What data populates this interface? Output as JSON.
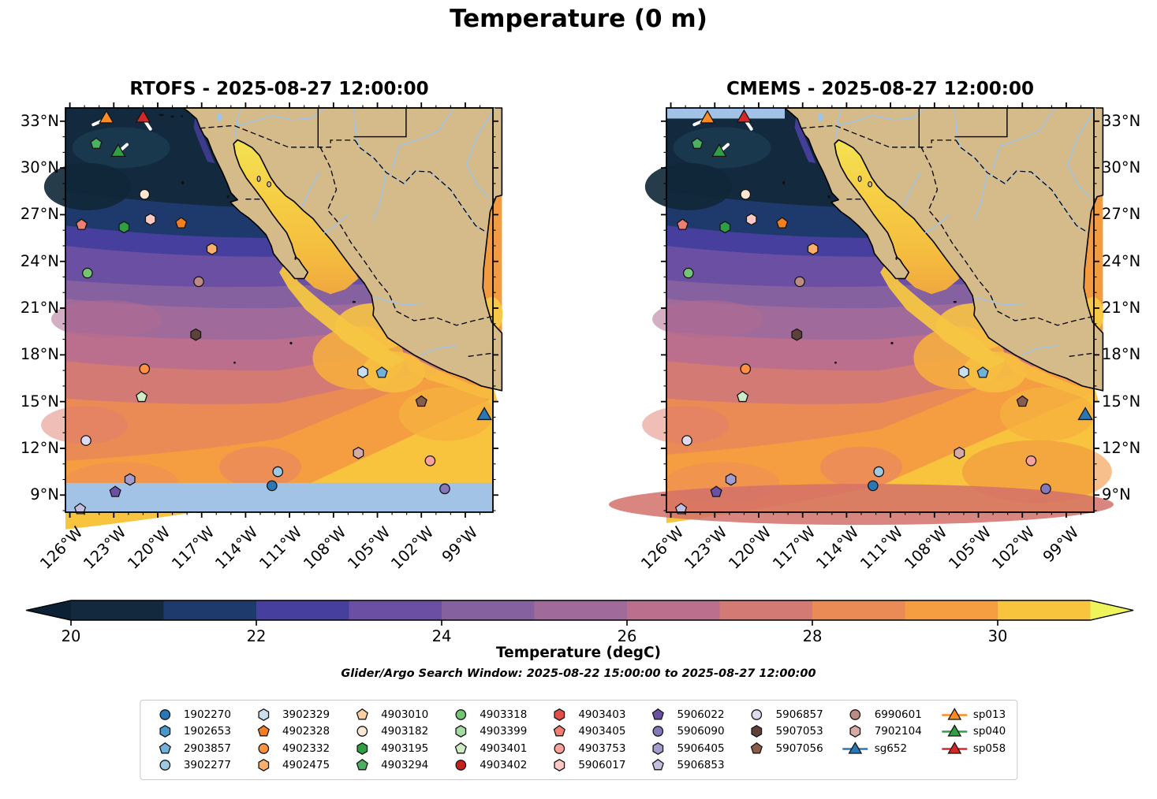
{
  "title": "Temperature (0 m)",
  "panels": [
    {
      "title": "RTOFS - 2025-08-27 12:00:00",
      "model": "RTOFS",
      "nodata_band": "bottom"
    },
    {
      "title": "CMEMS - 2025-08-27 12:00:00",
      "model": "CMEMS",
      "nodata_band": "top"
    }
  ],
  "axis": {
    "lat_labels": [
      "33°N",
      "30°N",
      "27°N",
      "24°N",
      "21°N",
      "18°N",
      "15°N",
      "12°N",
      "9°N"
    ],
    "lat_values": [
      33,
      30,
      27,
      24,
      21,
      18,
      15,
      12,
      9
    ],
    "lon_labels": [
      "126°W",
      "123°W",
      "120°W",
      "117°W",
      "114°W",
      "111°W",
      "108°W",
      "105°W",
      "102°W",
      "99°W"
    ],
    "lon_values": [
      -126,
      -123,
      -120,
      -117,
      -114,
      -111,
      -108,
      -105,
      -102,
      -99
    ]
  },
  "colorbar": {
    "label": "Temperature (degC)",
    "tick_labels": [
      "20",
      "22",
      "24",
      "26",
      "28",
      "30"
    ],
    "tick_values": [
      20,
      22,
      24,
      26,
      28,
      30
    ],
    "range": [
      20,
      31
    ],
    "extend": "both",
    "segment_colors": [
      "#13293e",
      "#1e3a6d",
      "#473f9e",
      "#6a4fa3",
      "#85619f",
      "#a06b9b",
      "#bb6f8c",
      "#d47a74",
      "#ea8b55",
      "#f59d41",
      "#f8c43e"
    ],
    "under_arrow_color": "#0c2133",
    "over_arrow_color": "#edf45c"
  },
  "annotation": "Glider/Argo Search Window: 2025-08-22 15:00:00 to 2025-08-27 12:00:00",
  "legend_entries": [
    {
      "id": "1902270",
      "shape": "circle",
      "color": "#2878b8",
      "lon": -112.2,
      "lat": 9.6
    },
    {
      "id": "1902653",
      "shape": "hexagon",
      "color": "#4a97c9"
    },
    {
      "id": "2903857",
      "shape": "pentagon",
      "color": "#73b2d8",
      "lon": -104.7,
      "lat": 16.85
    },
    {
      "id": "3902277",
      "shape": "circle",
      "color": "#9ecae1",
      "lon": -111.8,
      "lat": 10.5
    },
    {
      "id": "3902329",
      "shape": "hexagon",
      "color": "#c9dff0",
      "lon": -106.0,
      "lat": 16.9
    },
    {
      "id": "4902328",
      "shape": "pentagon",
      "color": "#f57f20",
      "lon": -118.4,
      "lat": 26.45
    },
    {
      "id": "4902332",
      "shape": "circle",
      "color": "#fd9140",
      "lon": -120.9,
      "lat": 17.1
    },
    {
      "id": "4902475",
      "shape": "hexagon",
      "color": "#fdae6b",
      "lon": -116.3,
      "lat": 24.8
    },
    {
      "id": "4903010",
      "shape": "pentagon",
      "color": "#fdd0a2"
    },
    {
      "id": "4903182",
      "shape": "circle",
      "color": "#fee8d3",
      "lon": -120.9,
      "lat": 28.3
    },
    {
      "id": "4903195",
      "shape": "hexagon",
      "color": "#2f9e45",
      "lon": -122.3,
      "lat": 26.2
    },
    {
      "id": "4903294",
      "shape": "pentagon",
      "color": "#4bb062",
      "lon": -124.2,
      "lat": 31.55
    },
    {
      "id": "4903318",
      "shape": "circle",
      "color": "#74c476",
      "lon": -124.8,
      "lat": 23.25
    },
    {
      "id": "4903399",
      "shape": "hexagon",
      "color": "#a5dba2"
    },
    {
      "id": "4903401",
      "shape": "pentagon",
      "color": "#cdebc7",
      "lon": -121.1,
      "lat": 15.3
    },
    {
      "id": "4903402",
      "shape": "circle",
      "color": "#cc1f1f"
    },
    {
      "id": "4903403",
      "shape": "hexagon",
      "color": "#e04f4a"
    },
    {
      "id": "4903405",
      "shape": "pentagon",
      "color": "#ef7f72",
      "lon": -125.2,
      "lat": 26.35
    },
    {
      "id": "4903753",
      "shape": "circle",
      "color": "#fba29a",
      "lon": -101.4,
      "lat": 11.2
    },
    {
      "id": "5906017",
      "shape": "hexagon",
      "color": "#fcc9c4",
      "lon": -120.5,
      "lat": 26.7
    },
    {
      "id": "5906022",
      "shape": "pentagon",
      "color": "#6a51a3",
      "lon": -122.9,
      "lat": 9.2
    },
    {
      "id": "5906090",
      "shape": "circle",
      "color": "#8677bd",
      "lon": -100.4,
      "lat": 9.4
    },
    {
      "id": "5906405",
      "shape": "hexagon",
      "color": "#a59cce",
      "lon": -121.9,
      "lat": 10.0
    },
    {
      "id": "5906853",
      "shape": "pentagon",
      "color": "#c4bedf",
      "lon": -125.3,
      "lat": 8.1
    },
    {
      "id": "5906857",
      "shape": "circle",
      "color": "#e0daee",
      "lon": -124.9,
      "lat": 12.5
    },
    {
      "id": "5907053",
      "shape": "hexagon",
      "color": "#5e4238",
      "lon": -117.4,
      "lat": 19.3
    },
    {
      "id": "5907056",
      "shape": "pentagon",
      "color": "#8a5d4a",
      "lon": -102.0,
      "lat": 15.0
    },
    {
      "id": "6990601",
      "shape": "circle",
      "color": "#bc8b83",
      "lon": -117.2,
      "lat": 22.7
    },
    {
      "id": "7902104",
      "shape": "hexagon",
      "color": "#d9aaa4",
      "lon": -106.3,
      "lat": 11.7
    },
    {
      "id": "sg652",
      "shape": "glider",
      "color": "#2878b5",
      "lon": -97.7,
      "lat": 14.1
    },
    {
      "id": "sp013",
      "shape": "glider",
      "color": "#fd8c24",
      "lon": -123.5,
      "lat": 33.15,
      "track": [
        [
          -123.5,
          33.15
        ],
        [
          -124.4,
          32.78
        ]
      ]
    },
    {
      "id": "sp040",
      "shape": "glider",
      "color": "#2f9e44",
      "lon": -122.7,
      "lat": 31.0,
      "track": [
        [
          -122.7,
          31.0
        ],
        [
          -122.1,
          31.5
        ]
      ]
    },
    {
      "id": "sp058",
      "shape": "glider",
      "color": "#d62728",
      "lon": -121.0,
      "lat": 33.2,
      "track": [
        [
          -121.0,
          33.2
        ],
        [
          -120.5,
          32.5
        ]
      ]
    }
  ],
  "map_colors": {
    "land": "#d5ba8a",
    "coast": "#000000",
    "river": "#9cc4ec",
    "border": "#000000",
    "nodata": "#a3c3e6",
    "gulf_california_north": "#f3e252",
    "gulf_california_south": "#f0a83f",
    "gulf_mexico": "#f29b40",
    "glider_track": "#ffffff"
  },
  "chart_data": {
    "type": "heatmap",
    "subtype": "filled-contour-map, two panels",
    "title": "Temperature (0 m)",
    "panel_titles": [
      "RTOFS - 2025-08-27 12:00:00",
      "CMEMS - 2025-08-27 12:00:00"
    ],
    "colorbar": {
      "label": "Temperature (degC)",
      "min": 20,
      "max": 31,
      "step": 1,
      "ticks": [
        20,
        22,
        24,
        26,
        28,
        30
      ],
      "extend": "both"
    },
    "lon_range_degW": [
      126.3,
      97.0
    ],
    "lat_range_degN": [
      7.9,
      33.85
    ],
    "annotation": "Glider/Argo Search Window: 2025-08-22 15:00:00 to 2025-08-27 12:00:00",
    "platform_ids": [
      "1902270",
      "1902653",
      "2903857",
      "3902277",
      "3902329",
      "4902328",
      "4902332",
      "4902475",
      "4903010",
      "4903182",
      "4903195",
      "4903294",
      "4903318",
      "4903399",
      "4903401",
      "4903402",
      "4903403",
      "4903405",
      "4903753",
      "5906017",
      "5906022",
      "5906090",
      "5906405",
      "5906853",
      "5906857",
      "5907053",
      "5907056",
      "6990601",
      "7902104",
      "sg652",
      "sp013",
      "sp040",
      "sp058"
    ],
    "field_description": "SST ~20degC (dark navy) in NW Pacific off California, warming southward through purple/mauve to ~29-31degC (orange/yellow) in the Gulf of California and along the southern Mexican coast; RTOFS has a no-data band south of ~9.8N, CMEMS a no-data strip north of ~33.2N"
  }
}
